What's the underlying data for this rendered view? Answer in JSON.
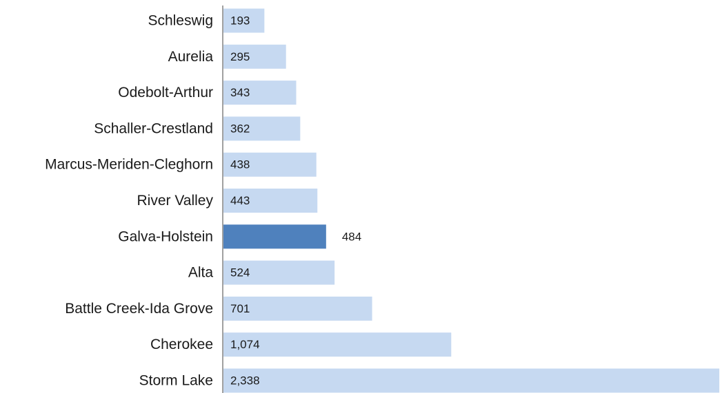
{
  "chart_data": {
    "type": "bar",
    "orientation": "horizontal",
    "title": "",
    "xlabel": "",
    "ylabel": "",
    "categories": [
      "Schleswig",
      "Aurelia",
      "Odebolt-Arthur",
      "Schaller-Crestland",
      "Marcus-Meriden-Cleghorn",
      "River Valley",
      "Galva-Holstein",
      "Alta",
      "Battle Creek-Ida Grove",
      "Cherokee",
      "Storm Lake"
    ],
    "values": [
      193,
      295,
      343,
      362,
      438,
      443,
      484,
      524,
      701,
      1074,
      2338
    ],
    "value_labels": [
      "193",
      "295",
      "343",
      "362",
      "438",
      "443",
      "484",
      "524",
      "701",
      "1,074",
      "2,338"
    ],
    "highlight": "Galva-Holstein",
    "colors": {
      "bar": "#c6d9f1",
      "highlight_bar": "#4f81bd",
      "axis": "#808080",
      "text": "#1a1a1a"
    },
    "xlim": [
      0,
      2338
    ],
    "grid": false,
    "legend": "none"
  }
}
